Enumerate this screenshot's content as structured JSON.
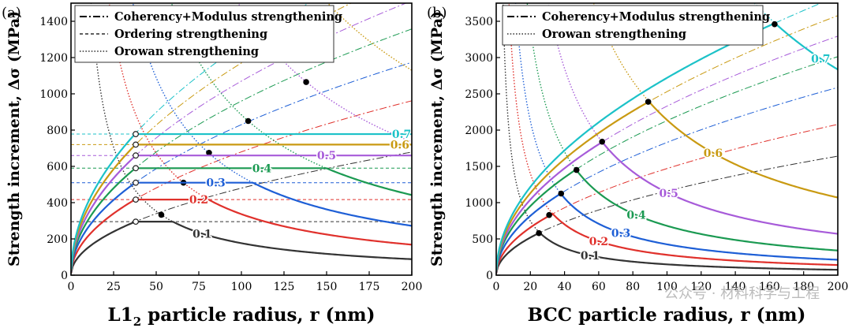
{
  "watermark": "公众号 · 材料科学与工程",
  "chart_data": [
    {
      "type": "line",
      "panel_label": "(a)",
      "xlabel_main": "L1",
      "xlabel_sub": "2",
      "xlabel_rest": " particle radius, r (nm)",
      "ylabel": "Strength increment, Δσ (MPa)",
      "xlim": [
        0,
        200
      ],
      "ylim": [
        0,
        1500
      ],
      "xticks": [
        0,
        25,
        50,
        75,
        100,
        125,
        150,
        175,
        200
      ],
      "yticks": [
        0,
        200,
        400,
        600,
        800,
        1000,
        1200,
        1400
      ],
      "legend": {
        "position": "top-left",
        "entries": [
          {
            "label": "Coherency+Modulus strengthening",
            "style": "dashdot"
          },
          {
            "label": "Ordering strengthening",
            "style": "dashed"
          },
          {
            "label": "Orowan strengthening",
            "style": "dotted"
          }
        ]
      },
      "fractions": [
        {
          "label": "0.1",
          "color": "#333333",
          "coherency_k": 48,
          "ordering": 295,
          "orowan_k": 17640,
          "critical_r": 38,
          "peak_r": 53,
          "peak": 333
        },
        {
          "label": "0.2",
          "color": "#e0312c",
          "coherency_k": 68,
          "ordering": 417,
          "orowan_k": 33660,
          "critical_r": 38,
          "peak_r": 66,
          "peak": 510
        },
        {
          "label": "0.3",
          "color": "#1e5fd6",
          "coherency_k": 83,
          "ordering": 510,
          "orowan_k": 54450,
          "critical_r": 38,
          "peak_r": 81,
          "peak": 675
        },
        {
          "label": "0.4",
          "color": "#1b9a52",
          "coherency_k": 96,
          "ordering": 590,
          "orowan_k": 88400,
          "critical_r": 38,
          "peak_r": 104,
          "peak": 850
        },
        {
          "label": "0.5",
          "color": "#a75bd9",
          "coherency_k": 107,
          "ordering": 660,
          "orowan_k": 147100,
          "critical_r": 38,
          "peak_r": 138,
          "peak": 1065
        },
        {
          "label": "0.6",
          "color": "#c99a12",
          "coherency_k": 117,
          "ordering": 720,
          "orowan_k": 226000,
          "critical_r": 38,
          "peak_r": null,
          "peak": null
        },
        {
          "label": "0.7",
          "color": "#1cc2c8",
          "coherency_k": 127,
          "ordering": 778,
          "orowan_k": 318000,
          "critical_r": 38,
          "peak_r": null,
          "peak": null
        }
      ]
    },
    {
      "type": "line",
      "panel_label": "(b)",
      "xlabel": "BCC particle radius, r (nm)",
      "ylabel": "Strength increment, Δσ (MPa)",
      "xlim": [
        0,
        200
      ],
      "ylim": [
        0,
        3750
      ],
      "xticks": [
        0,
        20,
        40,
        60,
        80,
        100,
        120,
        140,
        160,
        180,
        200
      ],
      "yticks": [
        0,
        500,
        1000,
        1500,
        2000,
        2500,
        3000,
        3500
      ],
      "legend": {
        "position": "top-left",
        "entries": [
          {
            "label": "Coherency+Modulus strengthening",
            "style": "dashdot"
          },
          {
            "label": "Orowan strengthening",
            "style": "dotted"
          }
        ]
      },
      "fractions": [
        {
          "label": "0.1",
          "color": "#333333",
          "coherency_k": 116,
          "orowan_k": 14900,
          "peak_r": 25,
          "peak": 580
        },
        {
          "label": "0.2",
          "color": "#e0312c",
          "coherency_k": 147,
          "orowan_k": 28000,
          "peak_r": 31,
          "peak": 830
        },
        {
          "label": "0.3",
          "color": "#1e5fd6",
          "coherency_k": 183,
          "orowan_k": 42500,
          "peak_r": 38,
          "peak": 1125
        },
        {
          "label": "0.4",
          "color": "#1b9a52",
          "coherency_k": 213,
          "orowan_k": 68000,
          "peak_r": 47,
          "peak": 1450
        },
        {
          "label": "0.5",
          "color": "#a75bd9",
          "coherency_k": 233,
          "orowan_k": 114000,
          "peak_r": 62,
          "peak": 1840
        },
        {
          "label": "0.6",
          "color": "#c99a12",
          "coherency_k": 253,
          "orowan_k": 214000,
          "peak_r": 89,
          "peak": 2390
        },
        {
          "label": "0.7",
          "color": "#1cc2c8",
          "coherency_k": 272,
          "orowan_k": 567000,
          "peak_r": 163,
          "peak": 3460
        }
      ]
    }
  ]
}
